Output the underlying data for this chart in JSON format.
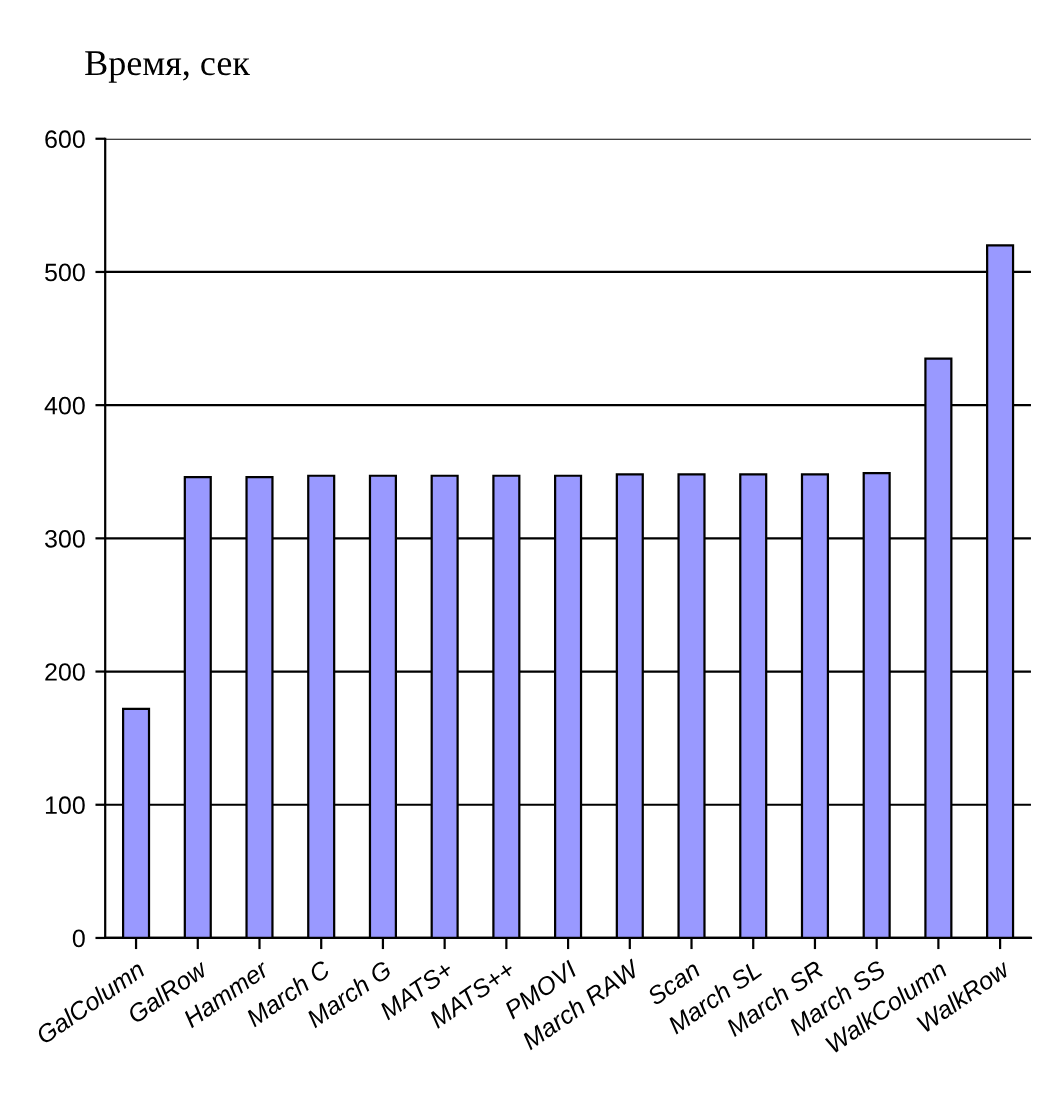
{
  "chart_data": {
    "type": "bar",
    "title": "Время, сек",
    "categories": [
      "GalColumn",
      "GalRow",
      "Hammer",
      "March C",
      "March G",
      "MATS+",
      "MATS++",
      "PMOVI",
      "March RAW",
      "Scan",
      "March SL",
      "March SR",
      "March SS",
      "WalkColumn",
      "WalkRow"
    ],
    "values": [
      172,
      346,
      346,
      347,
      347,
      347,
      347,
      347,
      348,
      348,
      348,
      348,
      349,
      435,
      520
    ],
    "color": "#9999ff",
    "ylim": [
      0,
      600
    ],
    "yticks": [
      0,
      100,
      200,
      300,
      400,
      500,
      600
    ],
    "grid": "y",
    "legend": false
  }
}
